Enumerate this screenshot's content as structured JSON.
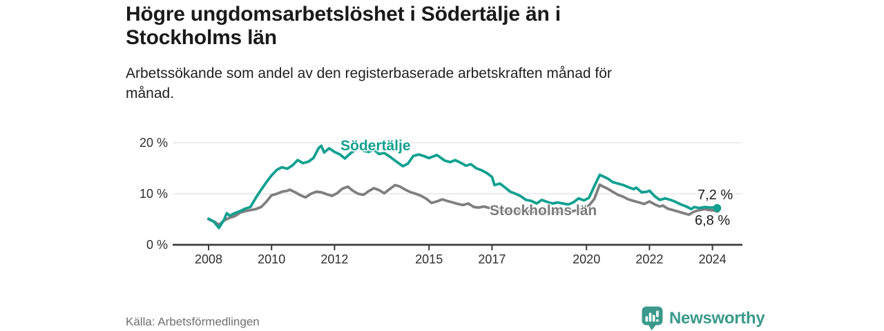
{
  "chart_data": {
    "type": "line",
    "title": "Högre ungdomsarbetslöshet i Södertälje än i Stockholms län",
    "subtitle": "Arbetssökande som andel av den registerbaserade arbetskraften månad för månad.",
    "source": "Källa: Arbetsförmedlingen",
    "unit": "%",
    "xlim": [
      2007.8,
      2025
    ],
    "ylim": [
      0,
      22
    ],
    "grid": "horizontal",
    "legend_position": "inline-labels",
    "x_ticks": [
      {
        "year": 2008,
        "label": "2008"
      },
      {
        "year": 2010,
        "label": "2010"
      },
      {
        "year": 2012,
        "label": "2012"
      },
      {
        "year": 2015,
        "label": "2015"
      },
      {
        "year": 2017,
        "label": "2017"
      },
      {
        "year": 2020,
        "label": "2020"
      },
      {
        "year": 2022,
        "label": "2022"
      },
      {
        "year": 2024,
        "label": "2024"
      }
    ],
    "y_ticks": [
      {
        "value": 0,
        "label": "0 %"
      },
      {
        "value": 10,
        "label": "10 %"
      },
      {
        "value": 20,
        "label": "20 %"
      }
    ],
    "y_gridlines": [
      10,
      20
    ],
    "series": [
      {
        "name": "Stockholms län",
        "color": "#7f7f7f",
        "end_label": "6,8 %",
        "points": [
          [
            2008.0,
            5.0
          ],
          [
            2008.17,
            4.6
          ],
          [
            2008.33,
            3.9
          ],
          [
            2008.5,
            4.8
          ],
          [
            2008.67,
            5.3
          ],
          [
            2008.83,
            5.6
          ],
          [
            2009.0,
            6.3
          ],
          [
            2009.17,
            6.6
          ],
          [
            2009.33,
            6.8
          ],
          [
            2009.5,
            7.0
          ],
          [
            2009.67,
            7.4
          ],
          [
            2009.83,
            8.4
          ],
          [
            2010.0,
            9.7
          ],
          [
            2010.17,
            10.0
          ],
          [
            2010.33,
            10.4
          ],
          [
            2010.5,
            10.6
          ],
          [
            2010.58,
            10.8
          ],
          [
            2010.75,
            10.3
          ],
          [
            2010.92,
            9.7
          ],
          [
            2011.08,
            9.3
          ],
          [
            2011.25,
            10.0
          ],
          [
            2011.42,
            10.4
          ],
          [
            2011.58,
            10.3
          ],
          [
            2011.75,
            9.9
          ],
          [
            2011.92,
            9.6
          ],
          [
            2012.08,
            10.1
          ],
          [
            2012.25,
            11.0
          ],
          [
            2012.42,
            11.4
          ],
          [
            2012.58,
            10.6
          ],
          [
            2012.75,
            10.0
          ],
          [
            2012.92,
            9.8
          ],
          [
            2013.08,
            10.5
          ],
          [
            2013.25,
            11.1
          ],
          [
            2013.42,
            10.7
          ],
          [
            2013.58,
            10.1
          ],
          [
            2013.75,
            10.9
          ],
          [
            2013.92,
            11.7
          ],
          [
            2014.08,
            11.4
          ],
          [
            2014.25,
            10.8
          ],
          [
            2014.42,
            10.3
          ],
          [
            2014.58,
            10.0
          ],
          [
            2014.75,
            9.6
          ],
          [
            2014.92,
            9.0
          ],
          [
            2015.08,
            8.2
          ],
          [
            2015.25,
            8.5
          ],
          [
            2015.42,
            8.9
          ],
          [
            2015.58,
            8.6
          ],
          [
            2015.75,
            8.3
          ],
          [
            2015.92,
            8.0
          ],
          [
            2016.08,
            7.8
          ],
          [
            2016.25,
            8.1
          ],
          [
            2016.42,
            7.4
          ],
          [
            2016.58,
            7.3
          ],
          [
            2016.75,
            7.5
          ],
          [
            2016.92,
            7.2
          ],
          [
            2017.08,
            7.0
          ],
          [
            2017.33,
            6.8
          ],
          [
            2017.58,
            6.6
          ],
          [
            2017.83,
            6.7
          ],
          [
            2018.08,
            6.6
          ],
          [
            2018.33,
            6.4
          ],
          [
            2018.58,
            6.3
          ],
          [
            2018.83,
            6.3
          ],
          [
            2019.08,
            6.4
          ],
          [
            2019.33,
            6.5
          ],
          [
            2019.58,
            6.6
          ],
          [
            2019.75,
            6.9
          ],
          [
            2019.92,
            7.3
          ],
          [
            2020.08,
            7.7
          ],
          [
            2020.25,
            9.0
          ],
          [
            2020.42,
            11.8
          ],
          [
            2020.5,
            11.5
          ],
          [
            2020.67,
            11.0
          ],
          [
            2020.83,
            10.4
          ],
          [
            2021.0,
            9.8
          ],
          [
            2021.17,
            9.4
          ],
          [
            2021.33,
            8.9
          ],
          [
            2021.5,
            8.6
          ],
          [
            2021.67,
            8.3
          ],
          [
            2021.83,
            8.0
          ],
          [
            2022.0,
            8.5
          ],
          [
            2022.17,
            7.9
          ],
          [
            2022.33,
            7.5
          ],
          [
            2022.42,
            7.7
          ],
          [
            2022.58,
            7.1
          ],
          [
            2022.75,
            6.8
          ],
          [
            2022.92,
            6.5
          ],
          [
            2023.08,
            6.2
          ],
          [
            2023.25,
            5.9
          ],
          [
            2023.42,
            6.5
          ],
          [
            2023.58,
            6.8
          ],
          [
            2023.75,
            7.0
          ],
          [
            2023.92,
            6.8
          ],
          [
            2024.08,
            6.7
          ],
          [
            2024.15,
            6.8
          ]
        ]
      },
      {
        "name": "Södertälje",
        "color": "#10a090",
        "end_label": "7,2 %",
        "points": [
          [
            2008.0,
            5.1
          ],
          [
            2008.17,
            4.5
          ],
          [
            2008.33,
            3.3
          ],
          [
            2008.5,
            5.0
          ],
          [
            2008.58,
            6.2
          ],
          [
            2008.67,
            5.7
          ],
          [
            2008.83,
            6.2
          ],
          [
            2009.0,
            6.6
          ],
          [
            2009.17,
            7.1
          ],
          [
            2009.33,
            7.4
          ],
          [
            2009.5,
            9.2
          ],
          [
            2009.67,
            10.8
          ],
          [
            2009.83,
            12.2
          ],
          [
            2010.0,
            13.6
          ],
          [
            2010.17,
            14.7
          ],
          [
            2010.33,
            15.2
          ],
          [
            2010.5,
            14.9
          ],
          [
            2010.67,
            15.6
          ],
          [
            2010.83,
            16.6
          ],
          [
            2011.0,
            16.0
          ],
          [
            2011.17,
            16.3
          ],
          [
            2011.33,
            17.0
          ],
          [
            2011.5,
            19.0
          ],
          [
            2011.58,
            19.4
          ],
          [
            2011.67,
            18.1
          ],
          [
            2011.83,
            18.9
          ],
          [
            2012.0,
            18.2
          ],
          [
            2012.17,
            17.7
          ],
          [
            2012.33,
            16.9
          ],
          [
            2012.5,
            17.9
          ],
          [
            2012.67,
            18.6
          ],
          [
            2012.75,
            19.2
          ],
          [
            2012.92,
            18.4
          ],
          [
            2013.08,
            18.2
          ],
          [
            2013.25,
            18.6
          ],
          [
            2013.42,
            17.8
          ],
          [
            2013.58,
            18.0
          ],
          [
            2013.75,
            17.3
          ],
          [
            2013.92,
            16.5
          ],
          [
            2014.08,
            15.8
          ],
          [
            2014.17,
            15.4
          ],
          [
            2014.33,
            15.9
          ],
          [
            2014.5,
            17.4
          ],
          [
            2014.67,
            17.7
          ],
          [
            2014.83,
            17.4
          ],
          [
            2015.0,
            17.0
          ],
          [
            2015.25,
            17.6
          ],
          [
            2015.5,
            16.5
          ],
          [
            2015.67,
            16.2
          ],
          [
            2015.83,
            16.6
          ],
          [
            2016.0,
            16.1
          ],
          [
            2016.17,
            15.5
          ],
          [
            2016.33,
            15.8
          ],
          [
            2016.5,
            15.0
          ],
          [
            2016.67,
            14.6
          ],
          [
            2016.83,
            14.1
          ],
          [
            2017.0,
            13.3
          ],
          [
            2017.08,
            11.7
          ],
          [
            2017.25,
            12.0
          ],
          [
            2017.42,
            11.2
          ],
          [
            2017.58,
            10.4
          ],
          [
            2017.75,
            10.0
          ],
          [
            2017.92,
            9.5
          ],
          [
            2018.08,
            8.8
          ],
          [
            2018.25,
            8.6
          ],
          [
            2018.42,
            8.1
          ],
          [
            2018.58,
            8.8
          ],
          [
            2018.75,
            8.4
          ],
          [
            2018.92,
            8.1
          ],
          [
            2019.08,
            8.3
          ],
          [
            2019.25,
            8.1
          ],
          [
            2019.42,
            7.9
          ],
          [
            2019.58,
            8.3
          ],
          [
            2019.75,
            9.1
          ],
          [
            2019.92,
            8.7
          ],
          [
            2020.08,
            9.2
          ],
          [
            2020.25,
            11.5
          ],
          [
            2020.42,
            13.7
          ],
          [
            2020.5,
            13.5
          ],
          [
            2020.67,
            13.0
          ],
          [
            2020.83,
            12.3
          ],
          [
            2021.0,
            12.0
          ],
          [
            2021.17,
            11.7
          ],
          [
            2021.33,
            11.3
          ],
          [
            2021.5,
            10.9
          ],
          [
            2021.58,
            11.2
          ],
          [
            2021.75,
            10.3
          ],
          [
            2021.92,
            10.4
          ],
          [
            2022.0,
            10.6
          ],
          [
            2022.17,
            9.5
          ],
          [
            2022.33,
            8.8
          ],
          [
            2022.5,
            9.1
          ],
          [
            2022.67,
            8.8
          ],
          [
            2022.83,
            8.4
          ],
          [
            2023.0,
            7.9
          ],
          [
            2023.17,
            7.5
          ],
          [
            2023.33,
            7.0
          ],
          [
            2023.42,
            7.4
          ],
          [
            2023.58,
            7.2
          ],
          [
            2023.75,
            7.4
          ],
          [
            2023.92,
            7.3
          ],
          [
            2024.08,
            7.3
          ],
          [
            2024.15,
            7.2
          ]
        ]
      }
    ]
  },
  "footer": {
    "brand": "Newsworthy",
    "brand_icon": "speech-bubble-bar-chart-icon",
    "brand_color": "#3a998b"
  },
  "colors": {
    "accent_teal": "#10a090",
    "series_gray": "#7f7f7f",
    "axis": "#3c3c3c",
    "gridline": "#e0e0e0",
    "text_dark": "#1a1a1a",
    "text_muted": "#6f6f6f"
  }
}
